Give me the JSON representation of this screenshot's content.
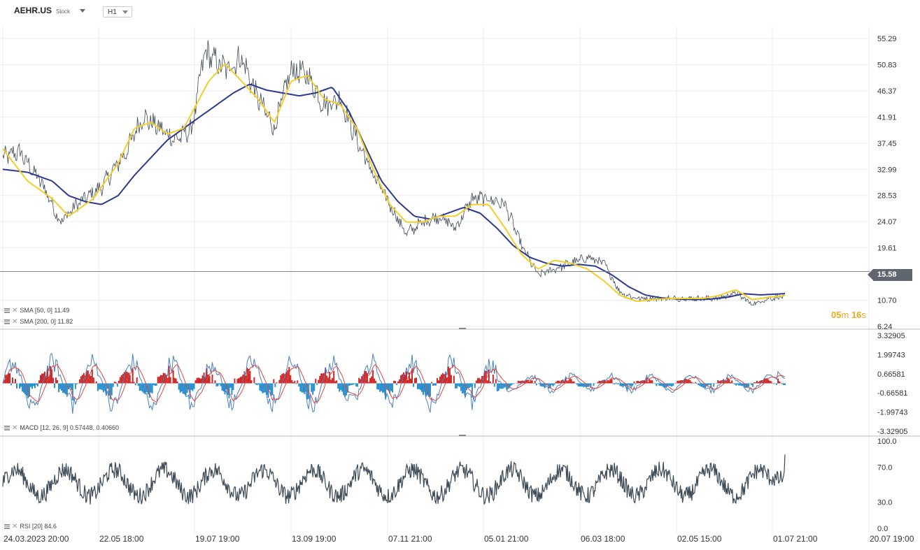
{
  "header": {
    "symbol": "AEHR.US",
    "instrument_type": "Stock",
    "timeframe": "H1"
  },
  "indicators": {
    "sma50": "SMA [50, 0] 11.49",
    "sma200": "SMA [200, 0] 11.82",
    "macd": "MACD [12, 26, 9] 0.57448, 0.40660",
    "rsi": "RSI [20] 84.6"
  },
  "timer": {
    "min": "05",
    "min_unit": "m",
    "sec": "16",
    "sec_unit": "s"
  },
  "last_price": "15.58",
  "colors": {
    "price": "#3e4a56",
    "sma50": "#f2cf2a",
    "sma200": "#2c3a8f",
    "macd_line": "#4a7fc1",
    "signal_line": "#e0473a",
    "hist_pos": "#cc1f1f",
    "hist_neg": "#1f8ccc",
    "rsi": "#3e4a56",
    "grid": "#eeeeee"
  },
  "chart_data": {
    "type": "line",
    "x_tick_labels": [
      "24.03.2023 20:00",
      "22.05 18:00",
      "19.07 19:00",
      "13.09 19:00",
      "07.11 21:00",
      "05.01 21:00",
      "06.03 18:00",
      "02.05 15:00",
      "01.07 21:00",
      "20.07 19:00"
    ],
    "price_panel": {
      "y_tick_labels": [
        "55.29",
        "50.83",
        "46.37",
        "41.91",
        "37.45",
        "32.99",
        "28.53",
        "24.07",
        "19.61",
        "15.58",
        "10.70",
        "6.24"
      ],
      "ylim": [
        6.24,
        55.29
      ],
      "last_value": 15.58,
      "price_anchors": [
        [
          0,
          35
        ],
        [
          0.02,
          36
        ],
        [
          0.05,
          30
        ],
        [
          0.07,
          24
        ],
        [
          0.09,
          27
        ],
        [
          0.12,
          30
        ],
        [
          0.15,
          36
        ],
        [
          0.17,
          42
        ],
        [
          0.19,
          40
        ],
        [
          0.21,
          38
        ],
        [
          0.23,
          40
        ],
        [
          0.245,
          53
        ],
        [
          0.27,
          50
        ],
        [
          0.29,
          52
        ],
        [
          0.31,
          45
        ],
        [
          0.33,
          40
        ],
        [
          0.35,
          50
        ],
        [
          0.37,
          49
        ],
        [
          0.39,
          44
        ],
        [
          0.41,
          45
        ],
        [
          0.43,
          38
        ],
        [
          0.45,
          32
        ],
        [
          0.47,
          27
        ],
        [
          0.49,
          22
        ],
        [
          0.51,
          24
        ],
        [
          0.53,
          25
        ],
        [
          0.55,
          23
        ],
        [
          0.57,
          28
        ],
        [
          0.59,
          28
        ],
        [
          0.61,
          27
        ],
        [
          0.63,
          20
        ],
        [
          0.65,
          15
        ],
        [
          0.67,
          16
        ],
        [
          0.69,
          17
        ],
        [
          0.71,
          18
        ],
        [
          0.73,
          17
        ],
        [
          0.75,
          12
        ],
        [
          0.77,
          11
        ],
        [
          0.79,
          11
        ],
        [
          0.81,
          11
        ],
        [
          0.83,
          11
        ],
        [
          0.85,
          11
        ],
        [
          0.87,
          11
        ],
        [
          0.89,
          12
        ],
        [
          0.91,
          10
        ],
        [
          0.93,
          11
        ],
        [
          0.95,
          11.4
        ]
      ],
      "sma50_anchors": [
        [
          0,
          36.5
        ],
        [
          0.03,
          31
        ],
        [
          0.06,
          28
        ],
        [
          0.08,
          25
        ],
        [
          0.11,
          28
        ],
        [
          0.14,
          34
        ],
        [
          0.16,
          40
        ],
        [
          0.18,
          41
        ],
        [
          0.2,
          39
        ],
        [
          0.22,
          40
        ],
        [
          0.25,
          48
        ],
        [
          0.27,
          51
        ],
        [
          0.29,
          48
        ],
        [
          0.31,
          45
        ],
        [
          0.33,
          41
        ],
        [
          0.35,
          48
        ],
        [
          0.37,
          49
        ],
        [
          0.39,
          45
        ],
        [
          0.41,
          44
        ],
        [
          0.43,
          40
        ],
        [
          0.45,
          33
        ],
        [
          0.47,
          27
        ],
        [
          0.49,
          24
        ],
        [
          0.51,
          24
        ],
        [
          0.53,
          25
        ],
        [
          0.55,
          25
        ],
        [
          0.57,
          27
        ],
        [
          0.59,
          27
        ],
        [
          0.61,
          23
        ],
        [
          0.63,
          18.5
        ],
        [
          0.65,
          16
        ],
        [
          0.67,
          17.5
        ],
        [
          0.69,
          17
        ],
        [
          0.71,
          16
        ],
        [
          0.73,
          14
        ],
        [
          0.75,
          11.5
        ],
        [
          0.77,
          10.5
        ],
        [
          0.79,
          10.8
        ],
        [
          0.81,
          11
        ],
        [
          0.83,
          11
        ],
        [
          0.85,
          11
        ],
        [
          0.87,
          11.5
        ],
        [
          0.89,
          12.5
        ],
        [
          0.91,
          10.8
        ],
        [
          0.93,
          11.2
        ],
        [
          0.95,
          11.49
        ]
      ],
      "sma200_anchors": [
        [
          0,
          33
        ],
        [
          0.03,
          32.5
        ],
        [
          0.06,
          31
        ],
        [
          0.08,
          28.5
        ],
        [
          0.1,
          27.5
        ],
        [
          0.12,
          27
        ],
        [
          0.14,
          28.5
        ],
        [
          0.16,
          32
        ],
        [
          0.18,
          35
        ],
        [
          0.2,
          38
        ],
        [
          0.22,
          40
        ],
        [
          0.24,
          42
        ],
        [
          0.26,
          44
        ],
        [
          0.28,
          46
        ],
        [
          0.3,
          47.5
        ],
        [
          0.32,
          46.5
        ],
        [
          0.34,
          46
        ],
        [
          0.36,
          45.5
        ],
        [
          0.38,
          46
        ],
        [
          0.4,
          47
        ],
        [
          0.42,
          43
        ],
        [
          0.44,
          37
        ],
        [
          0.46,
          31
        ],
        [
          0.48,
          27.5
        ],
        [
          0.5,
          25
        ],
        [
          0.52,
          24.5
        ],
        [
          0.54,
          25.5
        ],
        [
          0.56,
          26.5
        ],
        [
          0.58,
          25.5
        ],
        [
          0.6,
          23
        ],
        [
          0.62,
          20
        ],
        [
          0.64,
          18
        ],
        [
          0.66,
          17
        ],
        [
          0.68,
          16.5
        ],
        [
          0.7,
          16.8
        ],
        [
          0.72,
          16.5
        ],
        [
          0.74,
          15
        ],
        [
          0.76,
          13
        ],
        [
          0.78,
          11.6
        ],
        [
          0.8,
          11.1
        ],
        [
          0.82,
          10.9
        ],
        [
          0.84,
          10.8
        ],
        [
          0.86,
          10.9
        ],
        [
          0.88,
          11.2
        ],
        [
          0.9,
          11.8
        ],
        [
          0.92,
          11.6
        ],
        [
          0.95,
          11.82
        ]
      ]
    },
    "macd_panel": {
      "y_tick_labels": [
        "3.32905",
        "1.99743",
        "0.66581",
        "-0.66581",
        "-1.99743",
        "-3.32905"
      ],
      "ylim": [
        -3.32905,
        3.32905
      ],
      "macd": 0.57448,
      "signal": 0.4066
    },
    "rsi_panel": {
      "y_tick_labels": [
        "100.0",
        "70.0",
        "30.0",
        "0.0"
      ],
      "ylim": [
        0,
        100
      ],
      "last_value": 84.6
    }
  }
}
